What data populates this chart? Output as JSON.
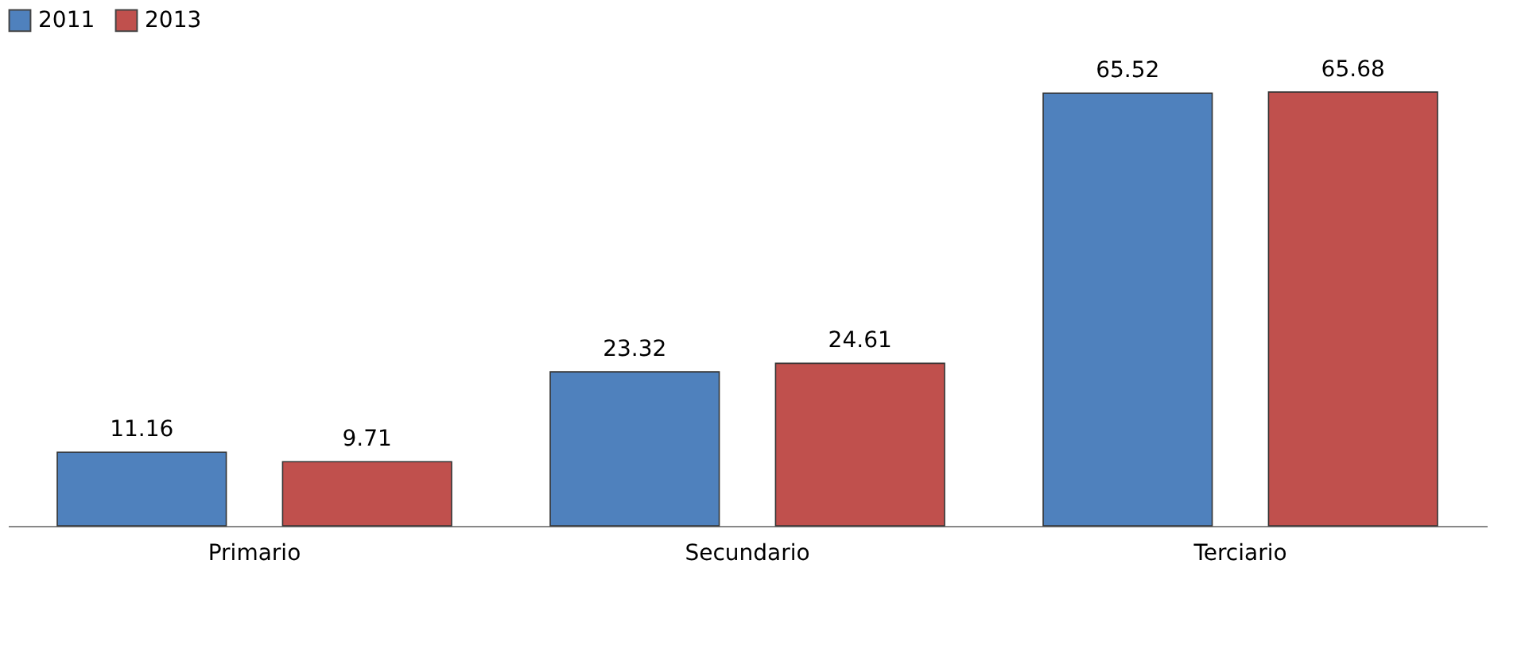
{
  "chart_data": {
    "type": "bar",
    "categories": [
      "Primario",
      "Secundario",
      "Terciario"
    ],
    "series": [
      {
        "name": "2011",
        "color": "#4f81bd",
        "values": [
          11.16,
          23.32,
          65.52
        ]
      },
      {
        "name": "2013",
        "color": "#c0504d",
        "values": [
          9.71,
          24.61,
          65.68
        ]
      }
    ],
    "data_labels": true,
    "legend": "top",
    "grid": false
  }
}
